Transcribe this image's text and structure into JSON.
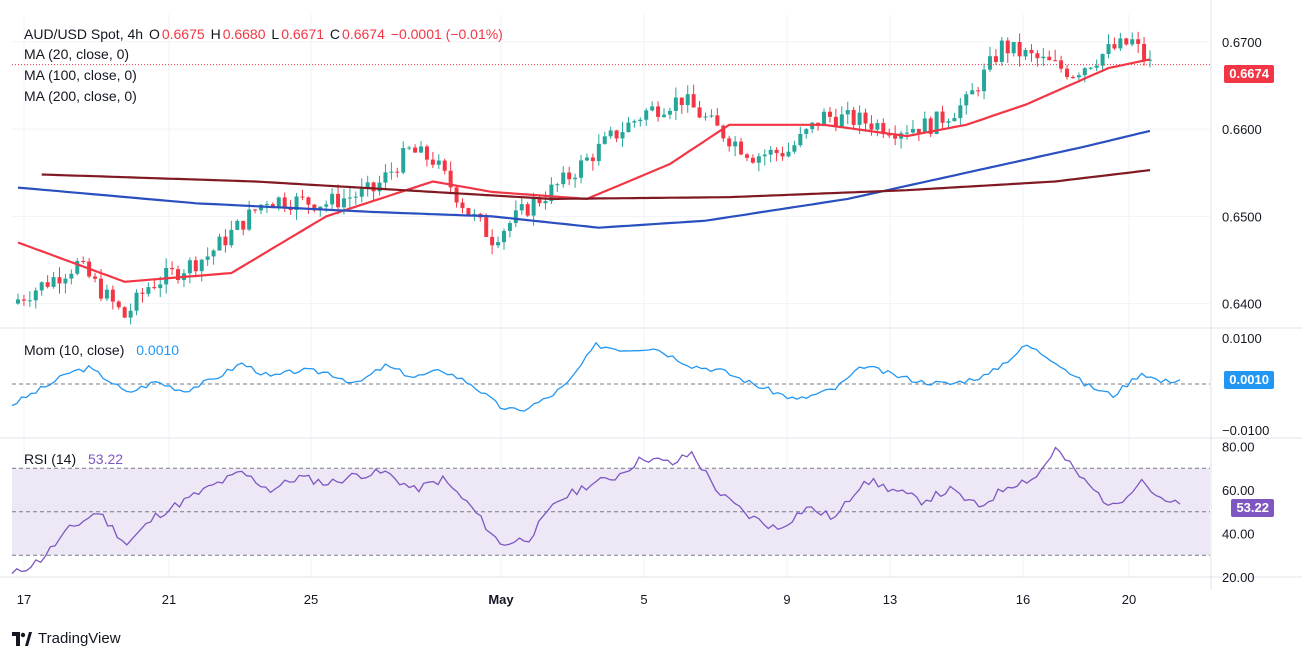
{
  "legend": {
    "symbol": "AUD/USD Spot, 4h",
    "open_label": "O",
    "open": "0.6675",
    "high_label": "H",
    "high": "0.6680",
    "low_label": "L",
    "low": "0.6671",
    "close_label": "C",
    "close": "0.6674",
    "change": "−0.0001 (−0.01%)",
    "ma1": "MA (20, close, 0)",
    "ma2": "MA (100, close, 0)",
    "ma3": "MA (200, close, 0)"
  },
  "momentum": {
    "label": "Mom (10, close)",
    "value": "0.0010"
  },
  "rsi": {
    "label": "RSI (14)",
    "value": "53.22"
  },
  "brand": "TradingView",
  "colors": {
    "up": "#26a69a",
    "down": "#f23645",
    "ma20": "#f23645",
    "ma100": "#2a4fbf",
    "ma200": "#801922",
    "mom": "#2196f3",
    "rsi": "#7e57c2",
    "rsi_band": "#ede7f6"
  },
  "chart_data": [
    {
      "type": "candlestick",
      "title": "AUD/USD Spot, 4h",
      "x_ticks": [
        "17",
        "21",
        "25",
        "May",
        "5",
        "9",
        "13",
        "16",
        "20"
      ],
      "y_ticks": [
        "0.6700",
        "0.6600",
        "0.6500",
        "0.6400"
      ],
      "ylim": [
        0.6372,
        0.6732
      ],
      "last_price": "0.6674",
      "key_prices": [
        {
          "bar": 0,
          "price": 0.6405
        },
        {
          "bar": 10,
          "price": 0.6445
        },
        {
          "bar": 18,
          "price": 0.6385
        },
        {
          "bar": 22,
          "price": 0.642
        },
        {
          "bar": 32,
          "price": 0.6455
        },
        {
          "bar": 42,
          "price": 0.652
        },
        {
          "bar": 52,
          "price": 0.6515
        },
        {
          "bar": 60,
          "price": 0.653
        },
        {
          "bar": 66,
          "price": 0.6575
        },
        {
          "bar": 70,
          "price": 0.6565
        },
        {
          "bar": 76,
          "price": 0.6505
        },
        {
          "bar": 80,
          "price": 0.6475
        },
        {
          "bar": 86,
          "price": 0.651
        },
        {
          "bar": 92,
          "price": 0.654
        },
        {
          "bar": 100,
          "price": 0.659
        },
        {
          "bar": 106,
          "price": 0.662
        },
        {
          "bar": 112,
          "price": 0.6635
        },
        {
          "bar": 118,
          "price": 0.66
        },
        {
          "bar": 124,
          "price": 0.657
        },
        {
          "bar": 130,
          "price": 0.6575
        },
        {
          "bar": 136,
          "price": 0.6615
        },
        {
          "bar": 142,
          "price": 0.661
        },
        {
          "bar": 148,
          "price": 0.66
        },
        {
          "bar": 154,
          "price": 0.6605
        },
        {
          "bar": 160,
          "price": 0.663
        },
        {
          "bar": 166,
          "price": 0.6695
        },
        {
          "bar": 172,
          "price": 0.668
        },
        {
          "bar": 178,
          "price": 0.6665
        },
        {
          "bar": 184,
          "price": 0.669
        },
        {
          "bar": 188,
          "price": 0.67
        },
        {
          "bar": 191,
          "price": 0.6674
        }
      ],
      "moving_averages": [
        {
          "name": "MA (20, close, 0)",
          "points": [
            [
              0,
              0.647
            ],
            [
              18,
              0.6425
            ],
            [
              36,
              0.6435
            ],
            [
              52,
              0.65
            ],
            [
              70,
              0.654
            ],
            [
              80,
              0.6528
            ],
            [
              96,
              0.652
            ],
            [
              110,
              0.656
            ],
            [
              120,
              0.6605
            ],
            [
              136,
              0.6605
            ],
            [
              150,
              0.6592
            ],
            [
              160,
              0.6605
            ],
            [
              170,
              0.6628
            ],
            [
              184,
              0.667
            ],
            [
              191,
              0.668
            ]
          ]
        },
        {
          "name": "MA (100, close, 0)",
          "points": [
            [
              0,
              0.6533
            ],
            [
              30,
              0.6515
            ],
            [
              60,
              0.6505
            ],
            [
              80,
              0.65
            ],
            [
              98,
              0.6487
            ],
            [
              116,
              0.6495
            ],
            [
              140,
              0.652
            ],
            [
              160,
              0.655
            ],
            [
              180,
              0.658
            ],
            [
              191,
              0.6598
            ]
          ]
        },
        {
          "name": "MA (200, close, 0)",
          "points": [
            [
              4,
              0.6548
            ],
            [
              40,
              0.654
            ],
            [
              70,
              0.6528
            ],
            [
              90,
              0.652
            ],
            [
              120,
              0.6522
            ],
            [
              150,
              0.653
            ],
            [
              175,
              0.654
            ],
            [
              191,
              0.6553
            ]
          ]
        }
      ]
    },
    {
      "type": "line",
      "title": "Mom (10, close)",
      "y_ticks": [
        "0.0100",
        "−0.0100"
      ],
      "ylim": [
        -0.0118,
        0.0118
      ],
      "series": [
        {
          "name": "Mom (10, close)",
          "points": [
            [
              0,
              -0.0045
            ],
            [
              8,
              0.0
            ],
            [
              12,
              0.0025
            ],
            [
              16,
              0.0035
            ],
            [
              20,
              0.001
            ],
            [
              24,
              -0.002
            ],
            [
              30,
              0.0005
            ],
            [
              36,
              -0.0015
            ],
            [
              42,
              0.001
            ],
            [
              48,
              0.0045
            ],
            [
              54,
              0.0015
            ],
            [
              60,
              0.003
            ],
            [
              66,
              0.0025
            ],
            [
              72,
              0.0
            ],
            [
              78,
              0.004
            ],
            [
              84,
              0.0015
            ],
            [
              90,
              0.003
            ],
            [
              96,
              0.0
            ],
            [
              102,
              -0.005
            ],
            [
              106,
              -0.006
            ],
            [
              112,
              -0.003
            ],
            [
              116,
              0.0
            ],
            [
              122,
              0.0085
            ],
            [
              128,
              0.0075
            ],
            [
              134,
              0.008
            ],
            [
              142,
              0.004
            ],
            [
              148,
              0.003
            ],
            [
              156,
              -0.0005
            ],
            [
              164,
              -0.0035
            ],
            [
              172,
              -0.001
            ],
            [
              178,
              0.004
            ],
            [
              184,
              0.002
            ],
            [
              190,
              0.0005
            ],
            [
              196,
              0.0
            ],
            [
              204,
              0.002
            ],
            [
              212,
              0.0085
            ],
            [
              218,
              0.005
            ],
            [
              224,
              0.0
            ],
            [
              230,
              -0.0025
            ],
            [
              236,
              0.0025
            ],
            [
              240,
              0.0005
            ],
            [
              244,
              0.001
            ]
          ]
        }
      ]
    },
    {
      "type": "line",
      "title": "RSI (14)",
      "y_ticks": [
        "80.00",
        "60.00",
        "40.00",
        "20.00"
      ],
      "ylim": [
        20,
        83
      ],
      "bands": [
        30,
        50,
        70
      ],
      "series": [
        {
          "name": "RSI (14)",
          "points": [
            [
              0,
              21
            ],
            [
              6,
              28
            ],
            [
              12,
              42
            ],
            [
              18,
              50
            ],
            [
              24,
              35
            ],
            [
              30,
              48
            ],
            [
              36,
              55
            ],
            [
              42,
              62
            ],
            [
              48,
              68
            ],
            [
              54,
              60
            ],
            [
              60,
              66
            ],
            [
              66,
              63
            ],
            [
              72,
              67
            ],
            [
              78,
              68
            ],
            [
              84,
              60
            ],
            [
              90,
              65
            ],
            [
              96,
              52
            ],
            [
              102,
              35
            ],
            [
              108,
              38
            ],
            [
              114,
              55
            ],
            [
              120,
              62
            ],
            [
              126,
              66
            ],
            [
              132,
              75
            ],
            [
              138,
              72
            ],
            [
              142,
              77
            ],
            [
              148,
              58
            ],
            [
              154,
              48
            ],
            [
              160,
              42
            ],
            [
              166,
              52
            ],
            [
              172,
              47
            ],
            [
              178,
              65
            ],
            [
              184,
              60
            ],
            [
              190,
              55
            ],
            [
              196,
              60
            ],
            [
              202,
              52
            ],
            [
              208,
              62
            ],
            [
              214,
              66
            ],
            [
              218,
              79
            ],
            [
              224,
              64
            ],
            [
              230,
              52
            ],
            [
              236,
              65
            ],
            [
              240,
              55
            ],
            [
              244,
              53
            ]
          ]
        }
      ]
    }
  ]
}
